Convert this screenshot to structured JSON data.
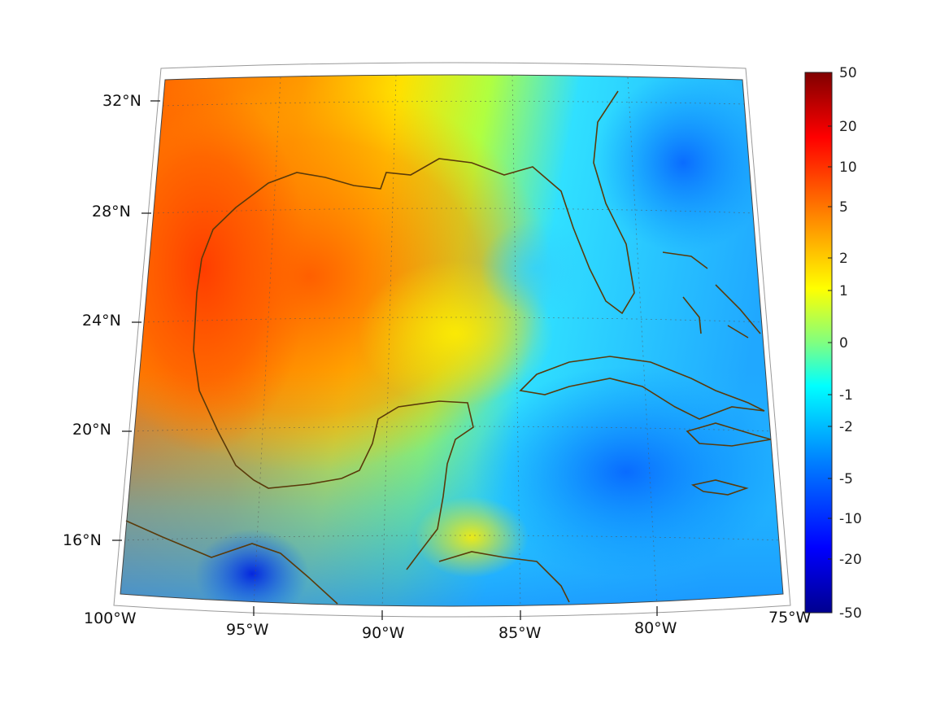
{
  "map": {
    "projection": "conic",
    "lon_range": [
      -100,
      -75
    ],
    "lat_range": [
      14,
      33
    ],
    "coastline_color": "#5a3a0a",
    "lat_labels": [
      "32°N",
      "28°N",
      "24°N",
      "20°N",
      "16°N"
    ],
    "lon_labels": [
      "100°W",
      "95°W",
      "90°W",
      "85°W",
      "80°W",
      "75°W"
    ]
  },
  "colorbar": {
    "tick_labels": [
      "50",
      "20",
      "10",
      "5",
      "2",
      "1",
      "0",
      "-1",
      "-2",
      "-5",
      "-10",
      "-20",
      "-50"
    ],
    "colormap": [
      "#00008f",
      "#0000ff",
      "#0080ff",
      "#00ffff",
      "#80ff80",
      "#ffff00",
      "#ff8000",
      "#ff0000",
      "#800000"
    ]
  }
}
